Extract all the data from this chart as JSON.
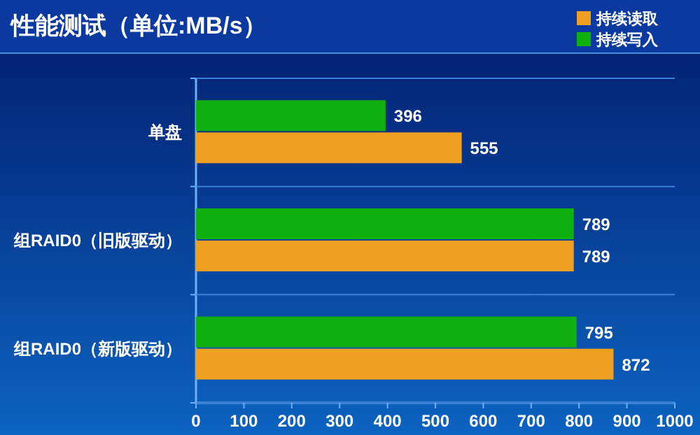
{
  "chart_data": {
    "type": "bar",
    "orientation": "horizontal",
    "title": "性能测试（单位:MB/s）",
    "categories": [
      "单盘",
      "组RAID0（旧版驱动）",
      "组RAID0（新版驱动）"
    ],
    "series": [
      {
        "name": "持续读取",
        "color": "#f0a020",
        "values": [
          555,
          789,
          872
        ]
      },
      {
        "name": "持续写入",
        "color": "#10b010",
        "values": [
          396,
          789,
          795
        ]
      }
    ],
    "xlim": [
      0,
      1000
    ],
    "xticks": [
      0,
      100,
      200,
      300,
      400,
      500,
      600,
      700,
      800,
      900,
      1000
    ],
    "data_labels": true,
    "legend": "top right",
    "grid": false
  }
}
